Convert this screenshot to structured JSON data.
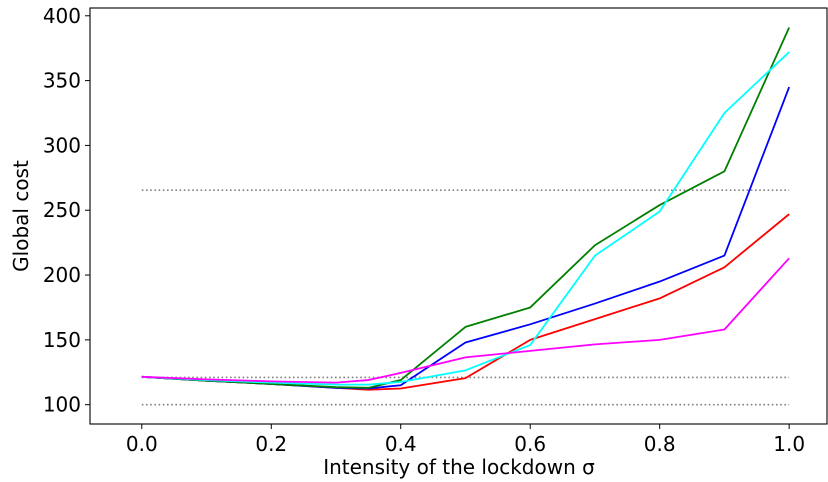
{
  "chart_data": {
    "type": "line",
    "title": "",
    "xlabel": "Intensity of the lockdown σ",
    "ylabel": "Global cost",
    "xlim": [
      -0.08,
      1.06
    ],
    "ylim": [
      85.1,
      406
    ],
    "grid": false,
    "legend": "none",
    "x_ticks": [
      0.0,
      0.2,
      0.4,
      0.6,
      0.8,
      1.0
    ],
    "x_tick_labels": [
      "0.0",
      "0.2",
      "0.4",
      "0.6",
      "0.8",
      "1.0"
    ],
    "y_ticks": [
      100,
      150,
      200,
      250,
      300,
      350,
      400
    ],
    "y_tick_labels": [
      "100",
      "150",
      "200",
      "250",
      "300",
      "350",
      "400"
    ],
    "reference_lines": [
      {
        "y": 100,
        "color": "#808080",
        "style": "dotted"
      },
      {
        "y": 121,
        "color": "#808080",
        "style": "dotted"
      },
      {
        "y": 265.5,
        "color": "#808080",
        "style": "dotted"
      }
    ],
    "series": [
      {
        "color": "#ff0000",
        "x": [
          0.0,
          0.1,
          0.2,
          0.3,
          0.35,
          0.4,
          0.5,
          0.6,
          0.7,
          0.8,
          0.9,
          1.0
        ],
        "y": [
          121.5,
          118.5,
          116,
          113,
          111.5,
          112.5,
          120.5,
          150,
          166,
          182,
          206,
          247
        ]
      },
      {
        "color": "#0000ff",
        "x": [
          0.0,
          0.1,
          0.2,
          0.3,
          0.35,
          0.4,
          0.5,
          0.6,
          0.7,
          0.8,
          0.9,
          1.0
        ],
        "y": [
          121.5,
          118.5,
          116,
          113,
          112.5,
          115,
          148,
          162,
          178,
          195,
          215,
          345
        ]
      },
      {
        "color": "#008000",
        "x": [
          0.0,
          0.1,
          0.2,
          0.3,
          0.35,
          0.4,
          0.5,
          0.6,
          0.7,
          0.8,
          0.9,
          1.0
        ],
        "y": [
          121.5,
          118.5,
          116,
          113.5,
          113,
          119,
          160,
          175,
          223,
          254,
          280,
          391
        ]
      },
      {
        "color": "#00ffff",
        "x": [
          0.0,
          0.1,
          0.2,
          0.3,
          0.35,
          0.4,
          0.5,
          0.6,
          0.7,
          0.8,
          0.9,
          1.0
        ],
        "y": [
          121.5,
          119,
          117,
          115.5,
          115.5,
          117.5,
          126.5,
          146,
          215,
          249,
          325,
          372
        ]
      },
      {
        "color": "#ff00ff",
        "x": [
          0.0,
          0.1,
          0.2,
          0.3,
          0.35,
          0.4,
          0.5,
          0.6,
          0.7,
          0.8,
          0.9,
          1.0
        ],
        "y": [
          121.5,
          119.5,
          118,
          117,
          119,
          124.5,
          136.5,
          141.5,
          146.5,
          150,
          158,
          213
        ]
      }
    ]
  }
}
